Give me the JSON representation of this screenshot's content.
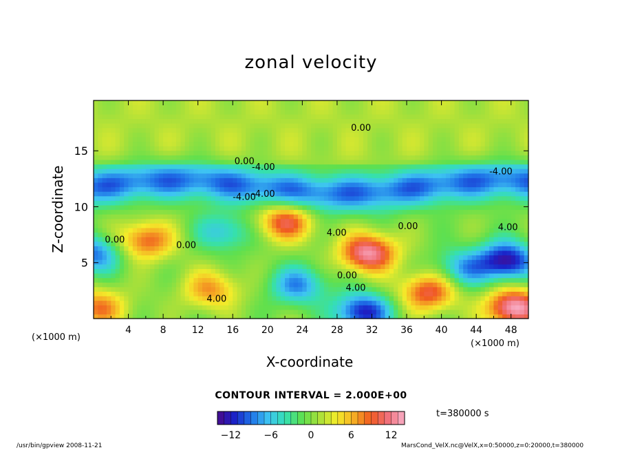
{
  "chart_data": {
    "type": "heatmap",
    "title": "zonal velocity",
    "xlabel": "X-coordinate",
    "ylabel": "Z-coordinate",
    "x_unit": "(×1000 m)",
    "y_unit": "(×1000 m)",
    "xlim": [
      0,
      50
    ],
    "ylim": [
      0,
      19.5
    ],
    "x_ticks": [
      "4",
      "8",
      "12",
      "16",
      "20",
      "24",
      "28",
      "32",
      "36",
      "40",
      "44",
      "48"
    ],
    "y_ticks": [
      "5",
      "10",
      "15"
    ],
    "contour_interval": "CONTOUR INTERVAL = 2.000E+00",
    "time_label": "t=380000 s",
    "colorbar": {
      "range": [
        -14,
        14
      ],
      "ticks": [
        "−12",
        "−6",
        "0",
        "6",
        "12"
      ],
      "colormap": [
        "#4a0a8a",
        "#1a22c8",
        "#1f74e8",
        "#3ec4f2",
        "#35e0b0",
        "#5fe04e",
        "#a8e03a",
        "#f4ec2a",
        "#f5b024",
        "#f05a20",
        "#f0707a",
        "#f9b0c8"
      ]
    },
    "contour_labels": [
      {
        "text": "0.00",
        "x": 29.6,
        "z": 16.8
      },
      {
        "text": "0.00",
        "x": 16.2,
        "z": 13.8
      },
      {
        "text": "-4.00",
        "x": 18.2,
        "z": 13.3
      },
      {
        "text": "-4.00",
        "x": 45.5,
        "z": 12.9
      },
      {
        "text": "-4.00",
        "x": 16.0,
        "z": 10.6
      },
      {
        "text": "-4.00",
        "x": 18.2,
        "z": 10.9
      },
      {
        "text": "0.00",
        "x": 1.3,
        "z": 6.8
      },
      {
        "text": "0.00",
        "x": 9.5,
        "z": 6.3
      },
      {
        "text": "4.00",
        "x": 26.8,
        "z": 7.4
      },
      {
        "text": "0.00",
        "x": 35.0,
        "z": 8.0
      },
      {
        "text": "4.00",
        "x": 46.5,
        "z": 7.9
      },
      {
        "text": "0.00",
        "x": 28.0,
        "z": 3.6
      },
      {
        "text": "4.00",
        "x": 29.0,
        "z": 2.5
      },
      {
        "text": "4.00",
        "x": 13.0,
        "z": 1.5
      }
    ],
    "features": [
      {
        "kind": "jet",
        "label": "negative band",
        "z_center": 11.8,
        "z_halfwidth": 1.7,
        "amplitude": -9
      },
      {
        "kind": "max",
        "x": 31.6,
        "z": 5.9,
        "amplitude": 13
      },
      {
        "kind": "max",
        "x": 22.0,
        "z": 8.7,
        "amplitude": 10
      },
      {
        "kind": "max",
        "x": 48.4,
        "z": 1.0,
        "amplitude": 14
      },
      {
        "kind": "max",
        "x": 6.0,
        "z": 7.0,
        "amplitude": 9
      },
      {
        "kind": "max",
        "x": 38.5,
        "z": 2.4,
        "amplitude": 10
      },
      {
        "kind": "max",
        "x": 0.5,
        "z": 1.0,
        "amplitude": 8
      },
      {
        "kind": "max",
        "x": 13.5,
        "z": 2.6,
        "amplitude": 7
      },
      {
        "kind": "min",
        "x": 47.5,
        "z": 5.2,
        "amplitude": -13
      },
      {
        "kind": "min",
        "x": 31.0,
        "z": 0.6,
        "amplitude": -12
      },
      {
        "kind": "min",
        "x": 0.0,
        "z": 5.8,
        "amplitude": -9
      },
      {
        "kind": "min",
        "x": 23.5,
        "z": 3.0,
        "amplitude": -8
      },
      {
        "kind": "min",
        "x": 15.0,
        "z": 7.8,
        "amplitude": -6
      },
      {
        "kind": "min",
        "x": 42.5,
        "z": 4.5,
        "amplitude": -7
      }
    ]
  },
  "footer": {
    "left": "/usr/bin/gpview   2008-11-21",
    "right": "MarsCond_VelX.nc@VelX,x=0:50000,z=0:20000,t=380000"
  }
}
